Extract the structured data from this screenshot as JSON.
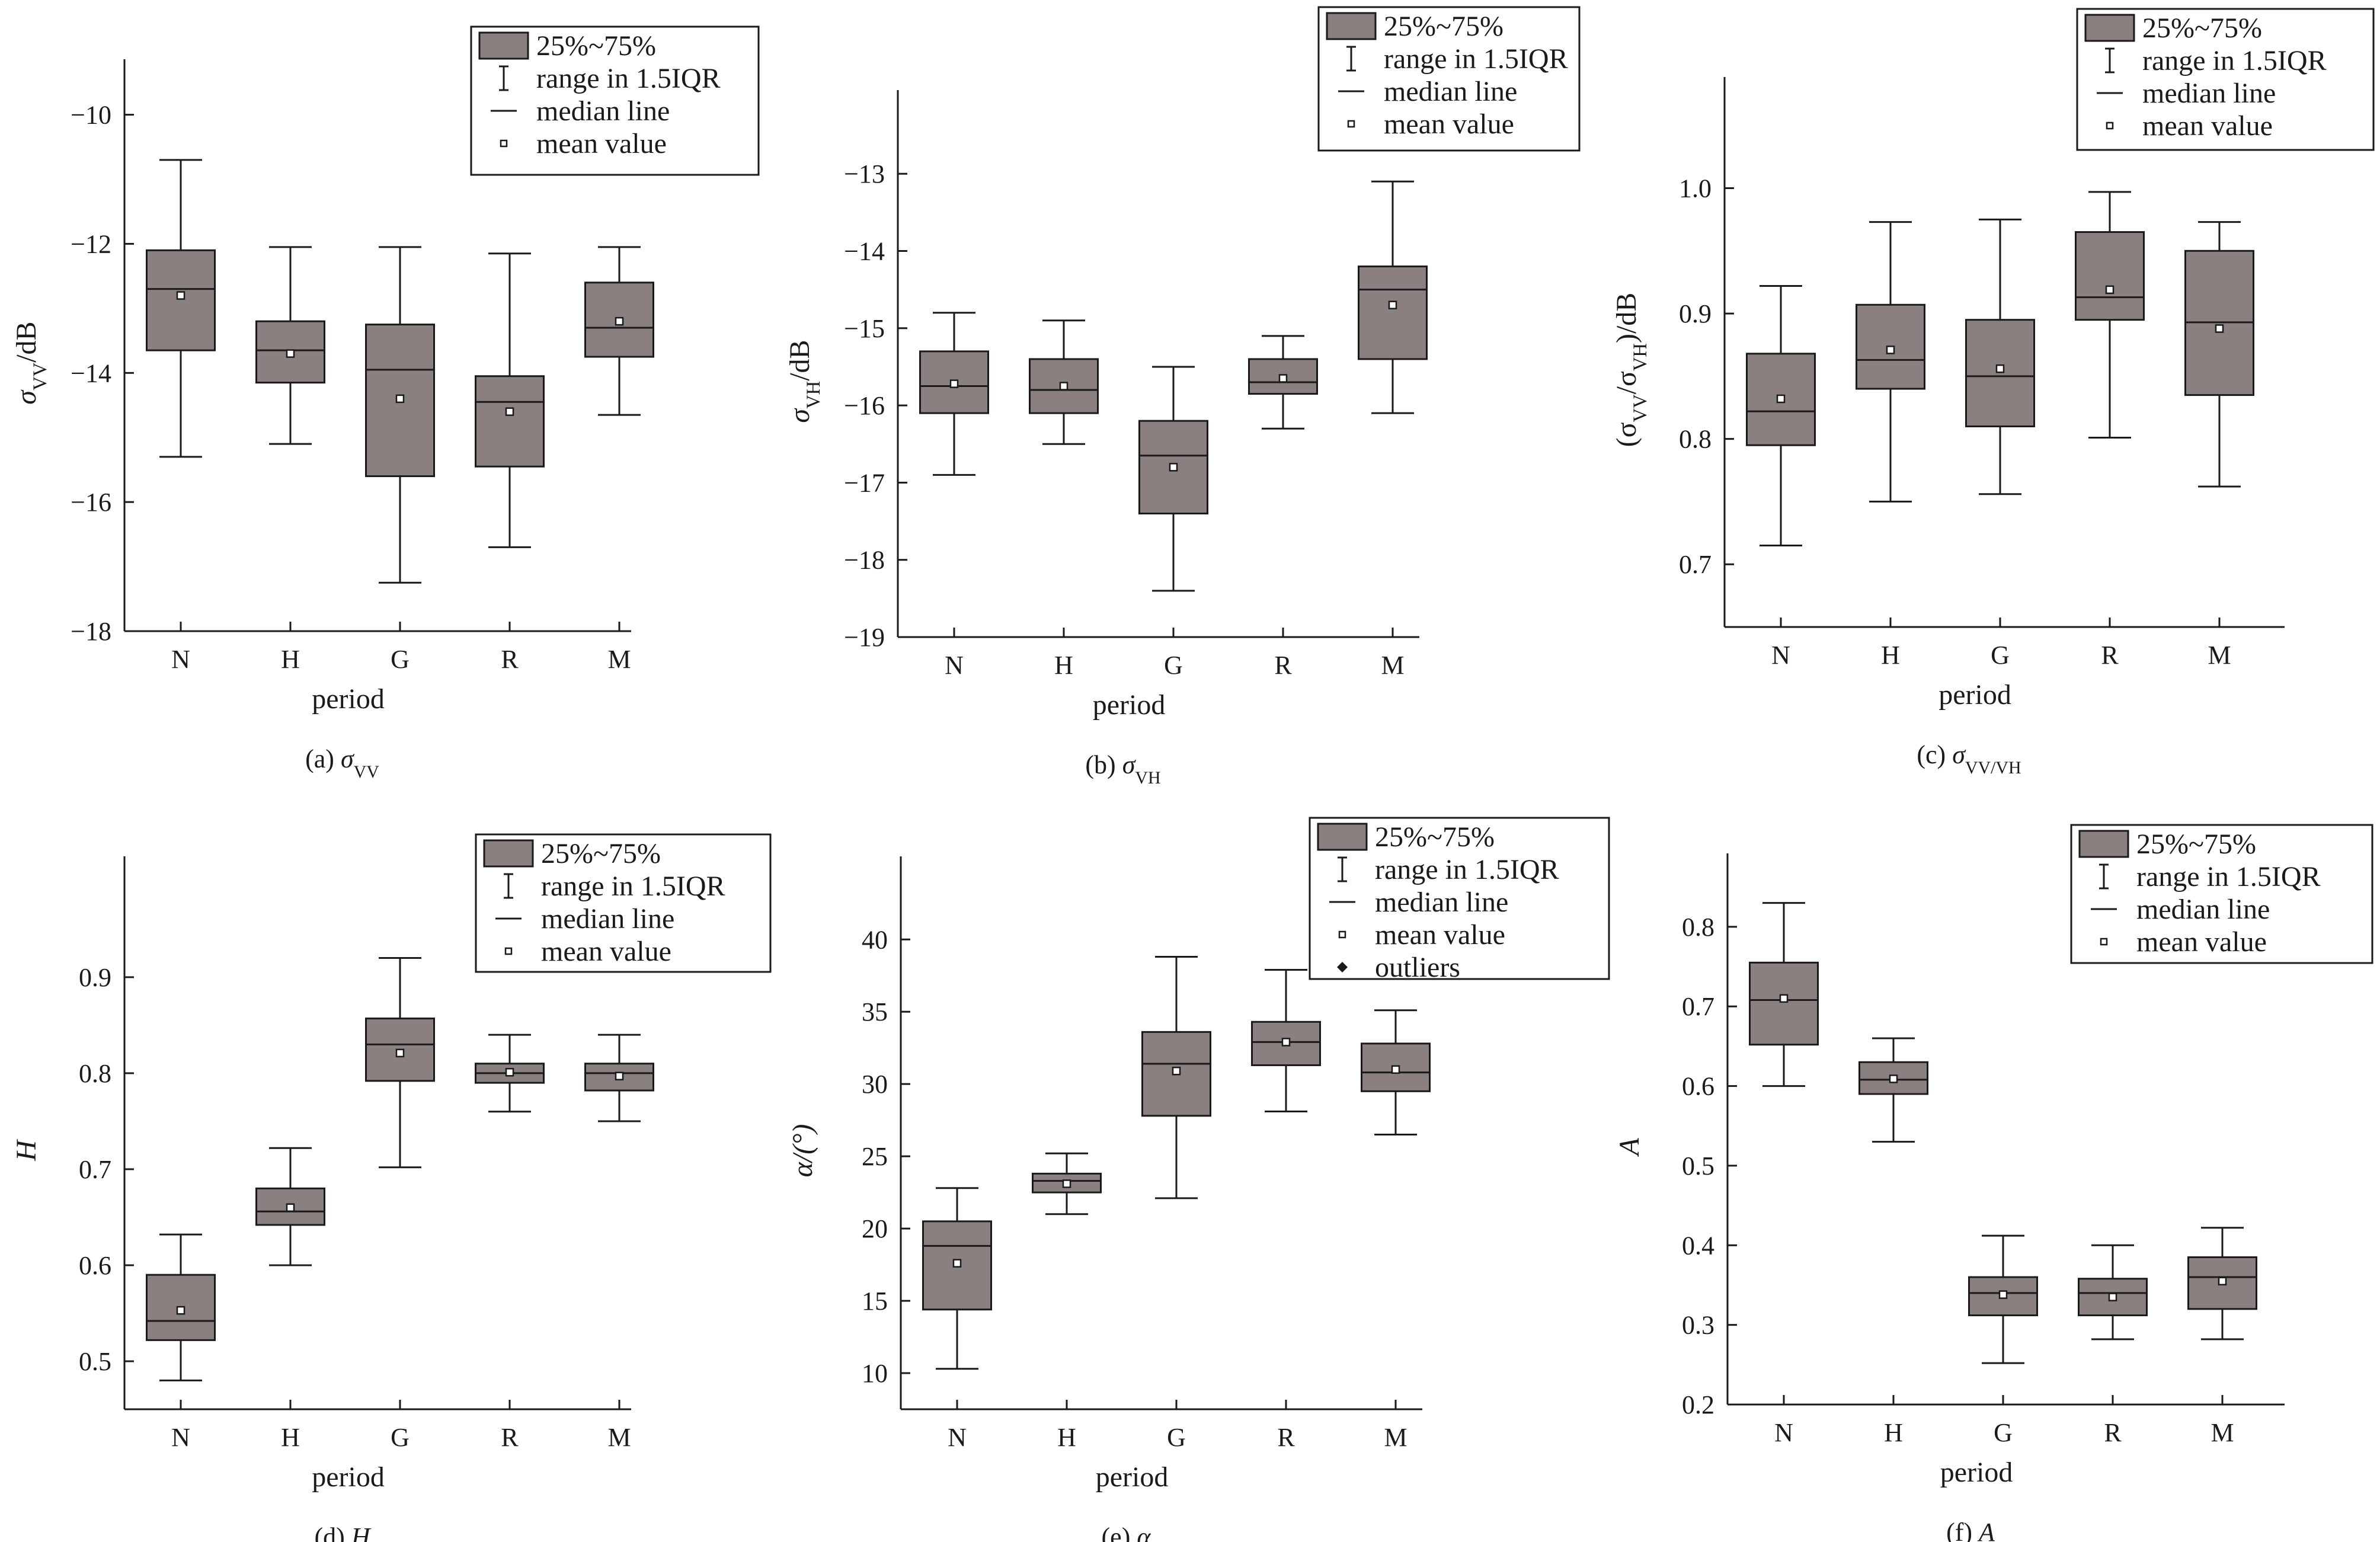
{
  "legend_items": {
    "box": "25%~75%",
    "range": "range in 1.5IQR",
    "median": "median line",
    "mean": "mean value",
    "outliers": "outliers"
  },
  "colors": {
    "box_fill": "#8a8080",
    "line": "#1a1a1a",
    "background": "#ffffff"
  },
  "chart_data": [
    {
      "id": "a",
      "type": "box",
      "caption_prefix": "(a) ",
      "caption_symbol": "σ",
      "caption_sub": "VV",
      "ylabel_parts": [
        {
          "t": "σ"
        },
        {
          "t": "VV",
          "sub": true
        },
        {
          "t": "/dB"
        }
      ],
      "xlabel": "period",
      "categories": [
        "N",
        "H",
        "G",
        "R",
        "M"
      ],
      "ylim": [
        -18,
        -9.6
      ],
      "yticks": [
        -18,
        -16,
        -14,
        -12,
        -10
      ],
      "yticklabels": [
        "−18",
        "−16",
        "−14",
        "−12",
        "−10"
      ],
      "boxes": [
        {
          "whislo": -15.3,
          "q1": -13.65,
          "med": -12.7,
          "q3": -12.1,
          "whishi": -10.7,
          "mean": -12.8
        },
        {
          "whislo": -15.1,
          "q1": -14.15,
          "med": -13.65,
          "q3": -13.2,
          "whishi": -12.05,
          "mean": -13.7
        },
        {
          "whislo": -17.25,
          "q1": -15.6,
          "med": -13.95,
          "q3": -13.25,
          "whishi": -12.05,
          "mean": -14.4
        },
        {
          "whislo": -16.7,
          "q1": -15.45,
          "med": -14.45,
          "q3": -14.05,
          "whishi": -12.15,
          "mean": -14.6
        },
        {
          "whislo": -14.65,
          "q1": -13.75,
          "med": -13.3,
          "q3": -12.6,
          "whishi": -12.05,
          "mean": -13.2
        }
      ],
      "legend_keys": [
        "box",
        "range",
        "median",
        "mean"
      ]
    },
    {
      "id": "b",
      "type": "box",
      "caption_prefix": "(b) ",
      "caption_symbol": "σ",
      "caption_sub": "VH",
      "ylabel_parts": [
        {
          "t": "σ"
        },
        {
          "t": "VH",
          "sub": true
        },
        {
          "t": "/dB"
        }
      ],
      "xlabel": "period",
      "categories": [
        "N",
        "H",
        "G",
        "R",
        "M"
      ],
      "ylim": [
        -19,
        -12.3
      ],
      "yticks": [
        -19,
        -18,
        -17,
        -16,
        -15,
        -14,
        -13
      ],
      "yticklabels": [
        "−19",
        "−18",
        "−17",
        "−16",
        "−15",
        "−14",
        "−13"
      ],
      "boxes": [
        {
          "whislo": -16.9,
          "q1": -16.1,
          "med": -15.75,
          "q3": -15.3,
          "whishi": -14.8,
          "mean": -15.72
        },
        {
          "whislo": -16.5,
          "q1": -16.1,
          "med": -15.8,
          "q3": -15.4,
          "whishi": -14.9,
          "mean": -15.75
        },
        {
          "whislo": -18.4,
          "q1": -17.4,
          "med": -16.65,
          "q3": -16.2,
          "whishi": -15.5,
          "mean": -16.8
        },
        {
          "whislo": -16.3,
          "q1": -15.85,
          "med": -15.7,
          "q3": -15.4,
          "whishi": -15.1,
          "mean": -15.65
        },
        {
          "whislo": -16.1,
          "q1": -15.4,
          "med": -14.5,
          "q3": -14.2,
          "whishi": -13.1,
          "mean": -14.7
        }
      ],
      "legend_keys": [
        "box",
        "range",
        "median",
        "mean"
      ]
    },
    {
      "id": "c",
      "type": "box",
      "caption_prefix": "(c) ",
      "caption_symbol": "σ",
      "caption_sub": "VV/VH",
      "ylabel_parts": [
        {
          "t": "(σ"
        },
        {
          "t": "VV",
          "sub": true
        },
        {
          "t": "/σ"
        },
        {
          "t": "VH",
          "sub": true
        },
        {
          "t": ")/dB"
        }
      ],
      "xlabel": "period",
      "categories": [
        "N",
        "H",
        "G",
        "R",
        "M"
      ],
      "ylim": [
        0.65,
        1.065
      ],
      "yticks": [
        0.7,
        0.8,
        0.9,
        1.0
      ],
      "yticklabels": [
        "0.7",
        "0.8",
        "0.9",
        "1.0"
      ],
      "boxes": [
        {
          "whislo": 0.715,
          "q1": 0.795,
          "med": 0.822,
          "q3": 0.868,
          "whishi": 0.922,
          "mean": 0.832
        },
        {
          "whislo": 0.75,
          "q1": 0.84,
          "med": 0.863,
          "q3": 0.907,
          "whishi": 0.973,
          "mean": 0.871
        },
        {
          "whislo": 0.756,
          "q1": 0.81,
          "med": 0.85,
          "q3": 0.895,
          "whishi": 0.975,
          "mean": 0.856
        },
        {
          "whislo": 0.801,
          "q1": 0.895,
          "med": 0.913,
          "q3": 0.965,
          "whishi": 0.997,
          "mean": 0.919
        },
        {
          "whislo": 0.762,
          "q1": 0.835,
          "med": 0.893,
          "q3": 0.95,
          "whishi": 0.973,
          "mean": 0.888
        }
      ],
      "legend_keys": [
        "box",
        "range",
        "median",
        "mean"
      ]
    },
    {
      "id": "d",
      "type": "box",
      "caption_prefix": "(d) ",
      "caption_symbol": "H",
      "caption_sub": "",
      "ylabel_parts": [
        {
          "t": "H"
        }
      ],
      "xlabel": "period",
      "categories": [
        "N",
        "H",
        "G",
        "R",
        "M"
      ],
      "ylim": [
        0.45,
        0.995
      ],
      "yticks": [
        0.5,
        0.6,
        0.7,
        0.8,
        0.9
      ],
      "yticklabels": [
        "0.5",
        "0.6",
        "0.7",
        "0.8",
        "0.9"
      ],
      "boxes": [
        {
          "whislo": 0.48,
          "q1": 0.522,
          "med": 0.542,
          "q3": 0.59,
          "whishi": 0.632,
          "mean": 0.553
        },
        {
          "whislo": 0.6,
          "q1": 0.642,
          "med": 0.656,
          "q3": 0.68,
          "whishi": 0.722,
          "mean": 0.66
        },
        {
          "whislo": 0.702,
          "q1": 0.792,
          "med": 0.83,
          "q3": 0.857,
          "whishi": 0.92,
          "mean": 0.821
        },
        {
          "whislo": 0.76,
          "q1": 0.79,
          "med": 0.8,
          "q3": 0.81,
          "whishi": 0.84,
          "mean": 0.801
        },
        {
          "whislo": 0.75,
          "q1": 0.782,
          "med": 0.8,
          "q3": 0.81,
          "whishi": 0.84,
          "mean": 0.797
        }
      ],
      "legend_keys": [
        "box",
        "range",
        "median",
        "mean"
      ]
    },
    {
      "id": "e",
      "type": "box",
      "caption_prefix": "(e) ",
      "caption_symbol": "α",
      "caption_sub": "",
      "ylabel_parts": [
        {
          "t": "α/(°)"
        }
      ],
      "xlabel": "period",
      "categories": [
        "N",
        "H",
        "G",
        "R",
        "M"
      ],
      "ylim": [
        7.5,
        43.7
      ],
      "yticks": [
        10,
        15,
        20,
        25,
        30,
        35,
        40
      ],
      "yticklabels": [
        "10",
        "15",
        "20",
        "25",
        "30",
        "35",
        "40"
      ],
      "boxes": [
        {
          "whislo": 10.3,
          "q1": 14.4,
          "med": 18.8,
          "q3": 20.5,
          "whishi": 22.8,
          "mean": 17.6
        },
        {
          "whislo": 21.0,
          "q1": 22.5,
          "med": 23.3,
          "q3": 23.8,
          "whishi": 25.2,
          "mean": 23.1
        },
        {
          "whislo": 22.1,
          "q1": 27.8,
          "med": 31.4,
          "q3": 33.6,
          "whishi": 38.8,
          "mean": 30.9
        },
        {
          "whislo": 28.1,
          "q1": 31.3,
          "med": 32.9,
          "q3": 34.3,
          "whishi": 37.9,
          "mean": 32.9
        },
        {
          "whislo": 26.5,
          "q1": 29.5,
          "med": 30.8,
          "q3": 32.8,
          "whishi": 35.1,
          "mean": 31.0
        }
      ],
      "legend_keys": [
        "box",
        "range",
        "median",
        "mean",
        "outliers"
      ]
    },
    {
      "id": "f",
      "type": "box",
      "caption_prefix": "(f) ",
      "caption_symbol": "A",
      "caption_sub": "",
      "ylabel_parts": [
        {
          "t": "A"
        }
      ],
      "xlabel": "period",
      "categories": [
        "N",
        "H",
        "G",
        "R",
        "M"
      ],
      "ylim": [
        0.2,
        0.855
      ],
      "yticks": [
        0.2,
        0.3,
        0.4,
        0.5,
        0.6,
        0.7,
        0.8
      ],
      "yticklabels": [
        "0.2",
        "0.3",
        "0.4",
        "0.5",
        "0.6",
        "0.7",
        "0.8"
      ],
      "boxes": [
        {
          "whislo": 0.6,
          "q1": 0.652,
          "med": 0.708,
          "q3": 0.755,
          "whishi": 0.83,
          "mean": 0.71
        },
        {
          "whislo": 0.53,
          "q1": 0.59,
          "med": 0.608,
          "q3": 0.63,
          "whishi": 0.66,
          "mean": 0.609
        },
        {
          "whislo": 0.252,
          "q1": 0.312,
          "med": 0.34,
          "q3": 0.36,
          "whishi": 0.412,
          "mean": 0.338
        },
        {
          "whislo": 0.282,
          "q1": 0.312,
          "med": 0.34,
          "q3": 0.358,
          "whishi": 0.4,
          "mean": 0.335
        },
        {
          "whislo": 0.282,
          "q1": 0.32,
          "med": 0.36,
          "q3": 0.385,
          "whishi": 0.422,
          "mean": 0.355
        }
      ],
      "legend_keys": [
        "box",
        "range",
        "median",
        "mean"
      ]
    }
  ]
}
